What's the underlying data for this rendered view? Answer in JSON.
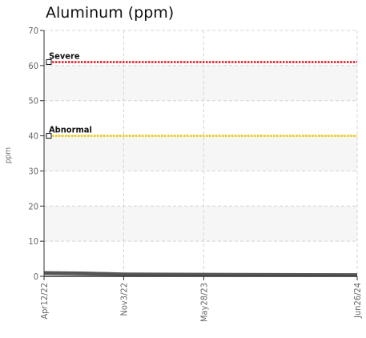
{
  "chart_data": {
    "type": "line",
    "title": "Aluminum (ppm)",
    "ylabel": "ppm",
    "xlabel": "",
    "ylim": [
      0,
      70
    ],
    "yticks": [
      0,
      10,
      20,
      30,
      40,
      50,
      60,
      70
    ],
    "xlim": [
      "2022-04-12",
      "2024-06-26"
    ],
    "xticks": [
      "Apr12/22",
      "Nov3/22",
      "May28/23",
      "Jun26/24"
    ],
    "xtick_dates": [
      "2022-04-12",
      "2022-11-03",
      "2023-05-28",
      "2024-06-26"
    ],
    "grid": true,
    "thresholds": [
      {
        "label": "Severe",
        "value": 61,
        "color": "#e8141d"
      },
      {
        "label": "Abnormal",
        "value": 40,
        "color": "#f0c800"
      }
    ],
    "series": [
      {
        "color": "#555555",
        "points": [
          {
            "x": "2022-04-12",
            "y": 1.2
          },
          {
            "x": "2022-07-20",
            "y": 1.1
          },
          {
            "x": "2022-11-03",
            "y": 0.8
          },
          {
            "x": "2023-05-28",
            "y": 0.7
          },
          {
            "x": "2024-06-26",
            "y": 0.6
          }
        ]
      },
      {
        "color": "#555555",
        "points": [
          {
            "x": "2022-04-12",
            "y": 0.7
          },
          {
            "x": "2022-11-03",
            "y": 0.4
          },
          {
            "x": "2023-05-28",
            "y": 0.3
          },
          {
            "x": "2024-06-26",
            "y": 0.3
          }
        ]
      }
    ]
  }
}
